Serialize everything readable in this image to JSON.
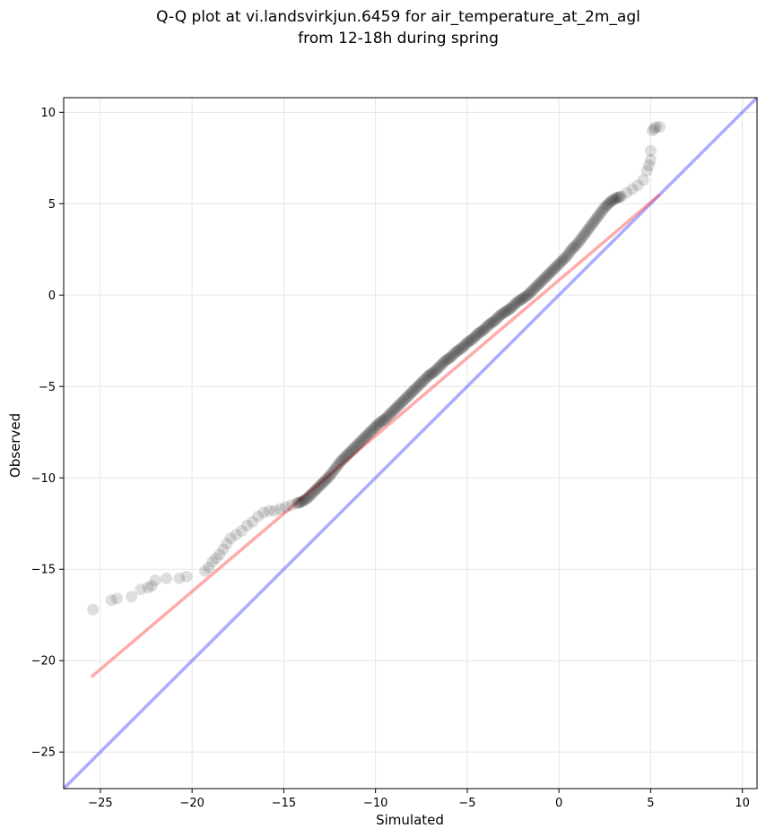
{
  "chart_data": {
    "type": "scatter",
    "title": "Q-Q plot at vi.landsvirkjun.6459 for air_temperature_at_2m_agl",
    "subtitle": "from 12-18h during spring",
    "xlabel": "Simulated",
    "ylabel": "Observed",
    "xlim": [
      -27,
      10.8
    ],
    "ylim": [
      -27,
      10.8
    ],
    "xticks": [
      -25,
      -20,
      -15,
      -10,
      -5,
      0,
      5,
      10
    ],
    "yticks": [
      -25,
      -20,
      -15,
      -10,
      -5,
      0,
      5,
      10
    ],
    "xtick_labels": [
      "−25",
      "−20",
      "−15",
      "−10",
      "−5",
      "0",
      "5",
      "10"
    ],
    "ytick_labels": [
      "−25",
      "−20",
      "−15",
      "−10",
      "−5",
      "0",
      "5",
      "10"
    ],
    "grid": true,
    "colors": {
      "points": "#000000",
      "fit_line": "#ff4444",
      "identity_line": "#4444ff",
      "grid": "#e6e6e6"
    },
    "reference_lines": [
      {
        "kind": "identity",
        "x": [
          -27,
          10.8
        ],
        "y": [
          -27,
          10.8
        ]
      },
      {
        "kind": "fit",
        "x": [
          -25.5,
          5.5
        ],
        "y": [
          -20.9,
          5.5
        ]
      }
    ],
    "quantile_points": {
      "x": [
        -25.4,
        -24.4,
        -24.1,
        -23.3,
        -22.8,
        -22.4,
        -22.2,
        -22.0,
        -21.4,
        -20.7,
        -20.3,
        -19.3,
        -19.1,
        -18.9,
        -18.7,
        -18.5,
        -18.3,
        -18.1,
        -17.9,
        -17.6,
        -17.3,
        -17.0,
        -16.7,
        -16.4,
        -16.1,
        -15.8,
        -15.5,
        -15.2,
        -14.9,
        -14.6,
        -14.3,
        -14.0,
        -13.7,
        -13.4,
        -13.1,
        -12.8,
        -12.5,
        -12.2,
        -11.9,
        -11.6,
        -11.3,
        -11.0,
        -10.7,
        -10.4,
        -10.1,
        -9.8,
        -9.5,
        -9.2,
        -8.9,
        -8.6,
        -8.3,
        -8.0,
        -7.7,
        -7.4,
        -7.1,
        -6.8,
        -6.5,
        -6.2,
        -5.9,
        -5.6,
        -5.3,
        -5.0,
        -4.7,
        -4.4,
        -4.1,
        -3.8,
        -3.5,
        -3.2,
        -2.9,
        -2.6,
        -2.3,
        -2.0,
        -1.7,
        -1.4,
        -1.1,
        -0.8,
        -0.5,
        -0.2,
        0.1,
        0.4,
        0.7,
        1.0,
        1.3,
        1.6,
        1.9,
        2.2,
        2.5,
        2.8,
        3.1,
        3.4,
        3.7,
        4.0,
        4.3,
        4.6,
        4.8,
        4.9,
        5.0,
        5.0,
        5.1,
        5.2,
        5.3,
        5.5
      ],
      "y": [
        -17.2,
        -16.7,
        -16.6,
        -16.5,
        -16.1,
        -16.0,
        -15.9,
        -15.6,
        -15.5,
        -15.5,
        -15.4,
        -15.1,
        -14.9,
        -14.6,
        -14.4,
        -14.2,
        -13.9,
        -13.6,
        -13.3,
        -13.1,
        -12.9,
        -12.6,
        -12.4,
        -12.1,
        -11.9,
        -11.8,
        -11.8,
        -11.7,
        -11.6,
        -11.5,
        -11.4,
        -11.3,
        -11.1,
        -10.8,
        -10.5,
        -10.2,
        -9.9,
        -9.5,
        -9.1,
        -8.8,
        -8.5,
        -8.2,
        -7.9,
        -7.6,
        -7.3,
        -7.0,
        -6.8,
        -6.5,
        -6.2,
        -5.9,
        -5.6,
        -5.3,
        -5.0,
        -4.7,
        -4.4,
        -4.2,
        -3.9,
        -3.6,
        -3.4,
        -3.1,
        -2.9,
        -2.6,
        -2.4,
        -2.1,
        -1.9,
        -1.6,
        -1.4,
        -1.1,
        -0.9,
        -0.7,
        -0.4,
        -0.2,
        0.0,
        0.3,
        0.6,
        0.9,
        1.2,
        1.5,
        1.8,
        2.1,
        2.5,
        2.8,
        3.2,
        3.6,
        4.0,
        4.4,
        4.8,
        5.1,
        5.3,
        5.4,
        5.6,
        5.8,
        6.0,
        6.3,
        6.8,
        7.1,
        7.4,
        7.9,
        9.0,
        9.1,
        9.2,
        9.2
      ]
    }
  }
}
